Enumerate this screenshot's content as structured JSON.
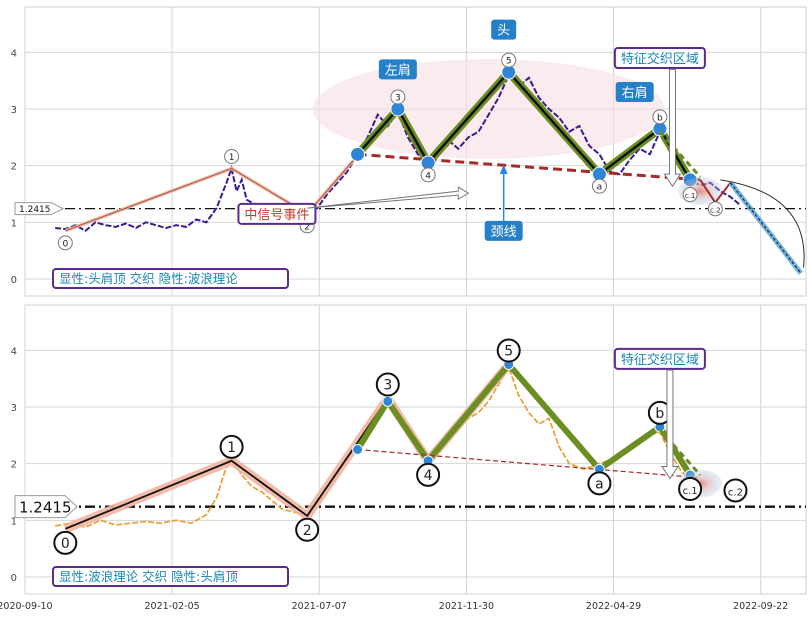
{
  "chart_data": [
    {
      "type": "line",
      "panel": "top",
      "title": "",
      "ylim": [
        -0.3,
        4.8
      ],
      "yticks": [
        0,
        1,
        2,
        3,
        4
      ],
      "grid": true,
      "reference_line": {
        "value": 1.2415,
        "label": "1.2415",
        "style": "dash-dot"
      },
      "series": [
        {
          "kind": "price",
          "color": "#3d1a8e",
          "points": [
            [
              0,
              0.9
            ],
            [
              4,
              0.88
            ],
            [
              8,
              0.95
            ],
            [
              12,
              0.85
            ],
            [
              16,
              1.0
            ],
            [
              20,
              0.95
            ],
            [
              24,
              0.92
            ],
            [
              28,
              0.98
            ],
            [
              32,
              0.9
            ],
            [
              36,
              1.0
            ],
            [
              40,
              0.95
            ],
            [
              44,
              0.9
            ],
            [
              48,
              0.95
            ],
            [
              52,
              0.92
            ],
            [
              56,
              1.05
            ],
            [
              60,
              1.0
            ],
            [
              64,
              1.25
            ],
            [
              68,
              1.7
            ],
            [
              70,
              1.95
            ],
            [
              72,
              1.55
            ],
            [
              74,
              1.75
            ],
            [
              76,
              1.4
            ],
            [
              80,
              1.3
            ],
            [
              84,
              1.25
            ],
            [
              88,
              1.15
            ],
            [
              92,
              1.3
            ],
            [
              96,
              1.1
            ],
            [
              100,
              1.2
            ],
            [
              104,
              1.25
            ],
            [
              108,
              1.5
            ],
            [
              112,
              1.7
            ],
            [
              116,
              1.9
            ],
            [
              120,
              2.2
            ],
            [
              124,
              2.5
            ],
            [
              128,
              2.9
            ],
            [
              132,
              2.7
            ],
            [
              136,
              2.95
            ],
            [
              140,
              2.5
            ],
            [
              144,
              2.2
            ],
            [
              148,
              2.05
            ],
            [
              152,
              2.2
            ],
            [
              156,
              2.45
            ],
            [
              160,
              2.3
            ],
            [
              164,
              2.5
            ],
            [
              168,
              2.6
            ],
            [
              172,
              2.9
            ],
            [
              176,
              3.2
            ],
            [
              180,
              3.6
            ],
            [
              184,
              3.4
            ],
            [
              188,
              3.55
            ],
            [
              192,
              3.2
            ],
            [
              196,
              3.0
            ],
            [
              200,
              2.85
            ],
            [
              204,
              2.6
            ],
            [
              208,
              2.7
            ],
            [
              212,
              2.35
            ],
            [
              216,
              2.2
            ],
            [
              220,
              1.9
            ],
            [
              224,
              1.85
            ],
            [
              228,
              2.1
            ],
            [
              232,
              2.3
            ],
            [
              236,
              2.2
            ],
            [
              240,
              2.6
            ],
            [
              244,
              2.4
            ],
            [
              248,
              2.0
            ],
            [
              252,
              1.75
            ],
            [
              256,
              1.65
            ],
            [
              260,
              1.7
            ],
            [
              264,
              1.55
            ],
            [
              268,
              1.45
            ],
            [
              272,
              1.3
            ]
          ]
        }
      ],
      "wave_points": [
        {
          "label": "0",
          "x": 4,
          "y": 0.85,
          "side": "below"
        },
        {
          "label": "1",
          "x": 70,
          "y": 1.95,
          "side": "above"
        },
        {
          "label": "2",
          "x": 100,
          "y": 1.15,
          "side": "below"
        },
        {
          "label": "3",
          "x": 136,
          "y": 3.0,
          "side": "above"
        },
        {
          "label": "4",
          "x": 148,
          "y": 2.05,
          "side": "below"
        },
        {
          "label": "5",
          "x": 180,
          "y": 3.65,
          "side": "above"
        },
        {
          "label": "a",
          "x": 216,
          "y": 1.85,
          "side": "below"
        },
        {
          "label": "b",
          "x": 240,
          "y": 2.65,
          "side": "above"
        },
        {
          "label": "c.1",
          "x": 252,
          "y": 1.7,
          "side": "below"
        },
        {
          "label": "c.2",
          "x": 262,
          "y": 1.45,
          "side": "below"
        }
      ],
      "head_shoulders_points": [
        [
          120,
          2.2
        ],
        [
          136,
          3.0
        ],
        [
          148,
          2.05
        ],
        [
          180,
          3.65
        ],
        [
          216,
          1.85
        ],
        [
          240,
          2.65
        ],
        [
          252,
          1.75
        ]
      ],
      "neckline": [
        [
          120,
          2.2
        ],
        [
          256,
          1.75
        ]
      ],
      "projection": [
        [
          256,
          1.75
        ],
        [
          262,
          1.35
        ],
        [
          268,
          1.7
        ],
        [
          296,
          0.1
        ]
      ],
      "annotations": [
        {
          "text": "左肩",
          "x": 136,
          "y": 3.7
        },
        {
          "text": "头",
          "x": 178,
          "y": 4.4
        },
        {
          "text": "右肩",
          "x": 230,
          "y": 3.3
        },
        {
          "text": "颈线",
          "x": 178,
          "y": 0.85
        },
        {
          "text": "特征交织区域",
          "x": 240,
          "y": 3.9
        },
        {
          "text": "中信号事件",
          "x": 88,
          "y": 1.15
        }
      ],
      "caption": "显性:头肩顶 交织 隐性:波浪理论"
    },
    {
      "type": "line",
      "panel": "bottom",
      "title": "",
      "ylim": [
        -0.3,
        4.8
      ],
      "yticks": [
        0,
        1,
        2,
        3,
        4
      ],
      "grid": true,
      "reference_line": {
        "value": 1.2415,
        "label": "1.2415",
        "style": "dash-dot"
      },
      "x_date_ticks": [
        "2020-09-10",
        "2021-02-05",
        "2021-07-07",
        "2021-11-30",
        "2022-04-29",
        "2022-09-22"
      ],
      "series": [
        {
          "kind": "price",
          "color": "#e8a33a",
          "points": [
            [
              0,
              0.9
            ],
            [
              6,
              0.95
            ],
            [
              12,
              0.88
            ],
            [
              18,
              1.0
            ],
            [
              24,
              0.92
            ],
            [
              30,
              0.95
            ],
            [
              36,
              0.98
            ],
            [
              42,
              0.95
            ],
            [
              48,
              1.0
            ],
            [
              54,
              0.95
            ],
            [
              60,
              1.1
            ],
            [
              64,
              1.4
            ],
            [
              68,
              1.95
            ],
            [
              70,
              2.1
            ],
            [
              74,
              1.8
            ],
            [
              78,
              1.6
            ],
            [
              82,
              1.5
            ],
            [
              86,
              1.35
            ],
            [
              90,
              1.2
            ],
            [
              94,
              1.15
            ],
            [
              100,
              1.1
            ],
            [
              104,
              1.3
            ],
            [
              108,
              1.5
            ],
            [
              112,
              1.8
            ],
            [
              116,
              2.1
            ],
            [
              120,
              2.3
            ],
            [
              124,
              2.7
            ],
            [
              128,
              2.95
            ],
            [
              132,
              3.2
            ],
            [
              136,
              2.95
            ],
            [
              140,
              2.5
            ],
            [
              144,
              2.2
            ],
            [
              148,
              2.1
            ],
            [
              152,
              2.3
            ],
            [
              156,
              2.5
            ],
            [
              160,
              2.6
            ],
            [
              164,
              2.8
            ],
            [
              168,
              2.9
            ],
            [
              172,
              3.1
            ],
            [
              176,
              3.4
            ],
            [
              180,
              3.7
            ],
            [
              184,
              3.2
            ],
            [
              188,
              2.9
            ],
            [
              192,
              2.7
            ],
            [
              196,
              2.8
            ],
            [
              200,
              2.3
            ],
            [
              204,
              2.0
            ],
            [
              210,
              1.9
            ],
            [
              216,
              2.0
            ],
            [
              222,
              2.1
            ],
            [
              228,
              2.3
            ],
            [
              234,
              2.5
            ],
            [
              240,
              2.55
            ],
            [
              244,
              2.2
            ],
            [
              248,
              1.9
            ],
            [
              252,
              1.7
            ],
            [
              256,
              1.55
            ]
          ]
        }
      ],
      "wave_points": [
        {
          "label": "0",
          "x": 4,
          "y": 0.85,
          "side": "below"
        },
        {
          "label": "1",
          "x": 70,
          "y": 2.05,
          "side": "above"
        },
        {
          "label": "2",
          "x": 100,
          "y": 1.08,
          "side": "below"
        },
        {
          "label": "3",
          "x": 132,
          "y": 3.15,
          "side": "above"
        },
        {
          "label": "4",
          "x": 148,
          "y": 2.05,
          "side": "below"
        },
        {
          "label": "5",
          "x": 180,
          "y": 3.75,
          "side": "above"
        },
        {
          "label": "a",
          "x": 216,
          "y": 1.9,
          "side": "below"
        },
        {
          "label": "b",
          "x": 240,
          "y": 2.65,
          "side": "above"
        },
        {
          "label": "c.1",
          "x": 252,
          "y": 1.8,
          "side": "below"
        },
        {
          "label": "c.2",
          "x": 270,
          "y": 1.28,
          "side": "above"
        }
      ],
      "head_shoulders_points": [
        [
          120,
          2.25
        ],
        [
          132,
          3.1
        ],
        [
          148,
          2.05
        ],
        [
          180,
          3.75
        ],
        [
          216,
          1.9
        ],
        [
          240,
          2.65
        ],
        [
          252,
          1.8
        ]
      ],
      "neckline": [
        [
          120,
          2.25
        ],
        [
          256,
          1.75
        ]
      ],
      "annotations": [
        {
          "text": "特征交织区域",
          "x": 240,
          "y": 3.85
        }
      ],
      "caption": "显性:波浪理论 交织 隐性:头肩顶"
    }
  ]
}
